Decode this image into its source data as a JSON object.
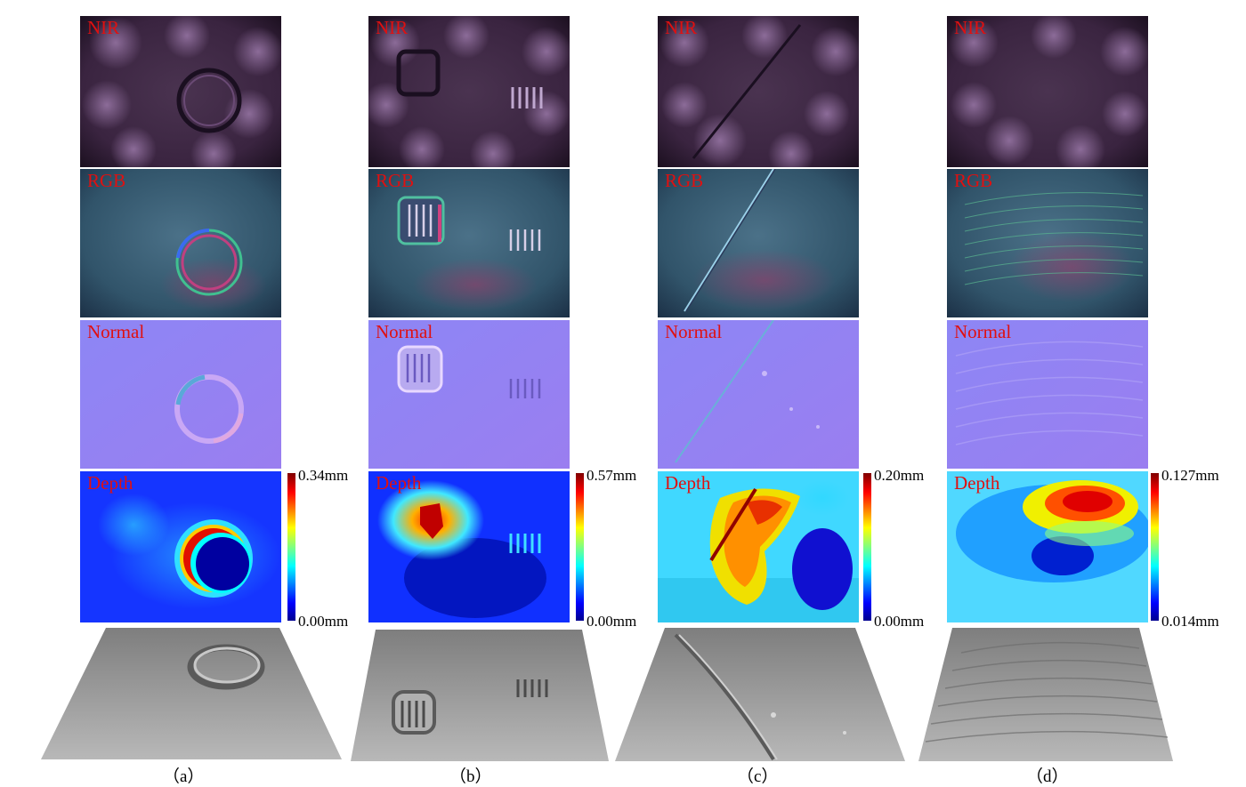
{
  "row_labels": {
    "nir": "NIR",
    "rgb": "RGB",
    "normal": "Normal",
    "depth": "Depth"
  },
  "columns": [
    {
      "caption": "（a）",
      "depth_max": "0.34mm",
      "depth_min": "0.00mm"
    },
    {
      "caption": "（b）",
      "depth_max": "0.57mm",
      "depth_min": "0.00mm"
    },
    {
      "caption": "（c）",
      "depth_max": "0.20mm",
      "depth_min": "0.00mm"
    },
    {
      "caption": "（d）",
      "depth_max": "0.127mm",
      "depth_min": "0.014mm"
    }
  ],
  "colors": {
    "label": "#e01010",
    "nir_base": "#3a2440",
    "rgb_base": "#355670",
    "normal_base": "#8a7cf0",
    "depth_base": "#1a4cf0",
    "surface": "#9a9a9a"
  },
  "colormap": "jet"
}
